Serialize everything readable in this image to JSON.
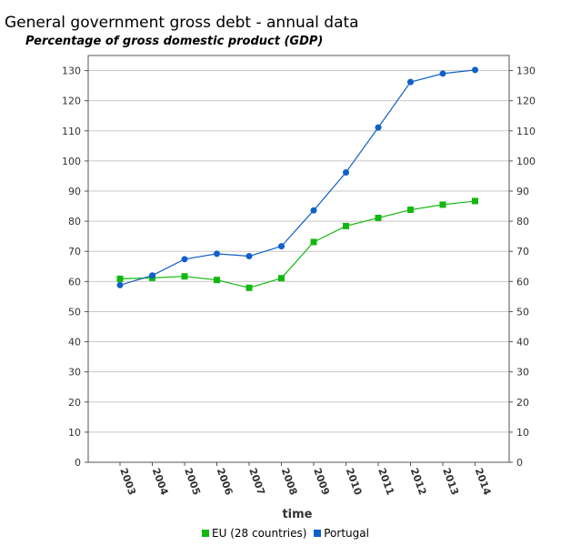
{
  "chart_data": {
    "type": "line",
    "title": "General government gross debt - annual data",
    "subtitle": "Percentage of gross domestic product (GDP)",
    "xlabel": "time",
    "ylabel": "",
    "categories": [
      "2003",
      "2004",
      "2005",
      "2006",
      "2007",
      "2008",
      "2009",
      "2010",
      "2011",
      "2012",
      "2013",
      "2014"
    ],
    "ylim": [
      0,
      135
    ],
    "yticks": [
      0,
      10,
      20,
      30,
      40,
      50,
      60,
      70,
      80,
      90,
      100,
      110,
      120,
      130
    ],
    "grid": true,
    "legend_position": "bottom",
    "series": [
      {
        "name": "EU (28 countries)",
        "color": "#12b80f",
        "marker": "square",
        "values": [
          60.9,
          61.2,
          61.7,
          60.5,
          57.9,
          61.1,
          73.1,
          78.4,
          81.1,
          83.8,
          85.5,
          86.7
        ]
      },
      {
        "name": "Portugal",
        "color": "#1060c8",
        "marker": "circle",
        "values": [
          58.8,
          62.0,
          67.4,
          69.2,
          68.4,
          71.7,
          83.6,
          96.2,
          111.1,
          126.2,
          129.0,
          130.2
        ]
      }
    ]
  }
}
